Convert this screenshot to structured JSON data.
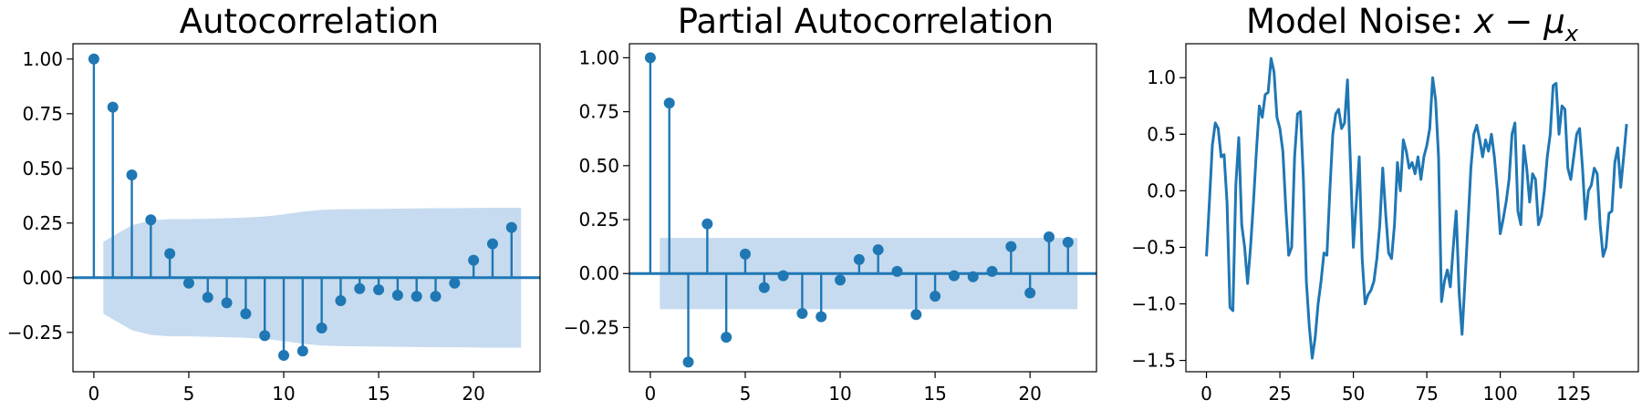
{
  "colors": {
    "series": "#1f77b4",
    "band": "#c6dbef"
  },
  "chart_data": [
    {
      "type": "stem",
      "title": "Autocorrelation",
      "xlim": [
        -1.1,
        23.5
      ],
      "ylim": [
        -0.43,
        1.07
      ],
      "xticks": [
        0,
        5,
        10,
        15,
        20
      ],
      "yticks": [
        -0.25,
        0.0,
        0.25,
        0.5,
        0.75,
        1.0
      ],
      "ytick_labels": [
        "−0.25",
        "0.00",
        "0.25",
        "0.50",
        "0.75",
        "1.00"
      ],
      "lags": [
        0,
        1,
        2,
        3,
        4,
        5,
        6,
        7,
        8,
        9,
        10,
        11,
        12,
        13,
        14,
        15,
        16,
        17,
        18,
        19,
        20,
        21,
        22
      ],
      "values": [
        1.0,
        0.78,
        0.47,
        0.265,
        0.11,
        -0.025,
        -0.09,
        -0.115,
        -0.165,
        -0.265,
        -0.355,
        -0.335,
        -0.23,
        -0.105,
        -0.05,
        -0.055,
        -0.08,
        -0.085,
        -0.085,
        -0.025,
        0.08,
        0.155,
        0.23
      ],
      "confidence_band": {
        "lags": [
          0.5,
          1,
          2,
          3,
          4,
          5,
          6,
          7,
          8,
          9,
          10,
          11,
          12,
          13,
          14,
          15,
          16,
          17,
          18,
          19,
          20,
          21,
          22,
          22.5
        ],
        "upper": [
          0.165,
          0.19,
          0.24,
          0.262,
          0.268,
          0.268,
          0.27,
          0.272,
          0.275,
          0.28,
          0.29,
          0.302,
          0.31,
          0.313,
          0.314,
          0.315,
          0.316,
          0.317,
          0.318,
          0.318,
          0.319,
          0.32,
          0.32,
          0.32
        ],
        "lower": [
          -0.165,
          -0.19,
          -0.24,
          -0.262,
          -0.268,
          -0.268,
          -0.27,
          -0.272,
          -0.275,
          -0.28,
          -0.29,
          -0.302,
          -0.31,
          -0.313,
          -0.314,
          -0.315,
          -0.316,
          -0.317,
          -0.318,
          -0.318,
          -0.319,
          -0.32,
          -0.32,
          -0.32
        ]
      }
    },
    {
      "type": "stem",
      "title": "Partial Autocorrelation",
      "xlim": [
        -1.1,
        23.5
      ],
      "ylim": [
        -0.455,
        1.065
      ],
      "xticks": [
        0,
        5,
        10,
        15,
        20
      ],
      "yticks": [
        -0.25,
        0.0,
        0.25,
        0.5,
        0.75,
        1.0
      ],
      "ytick_labels": [
        "−0.25",
        "0.00",
        "0.25",
        "0.50",
        "0.75",
        "1.00"
      ],
      "lags": [
        0,
        1,
        2,
        3,
        4,
        5,
        6,
        7,
        8,
        9,
        10,
        11,
        12,
        13,
        14,
        15,
        16,
        17,
        18,
        19,
        20,
        21,
        22
      ],
      "values": [
        1.0,
        0.79,
        -0.41,
        0.23,
        -0.295,
        0.09,
        -0.065,
        -0.01,
        -0.185,
        -0.2,
        -0.03,
        0.065,
        0.11,
        0.01,
        -0.19,
        -0.105,
        -0.01,
        -0.015,
        0.01,
        0.125,
        -0.09,
        0.17,
        0.145
      ],
      "confidence_band": {
        "lags": [
          0.5,
          22.5
        ],
        "upper": [
          0.165,
          0.165
        ],
        "lower": [
          -0.165,
          -0.165
        ]
      }
    },
    {
      "type": "line",
      "title": "Model Noise: ",
      "title_math": {
        "x": "x",
        "minus": " − ",
        "mu": "μ",
        "sub": "x"
      },
      "xlim": [
        -7,
        147
      ],
      "ylim": [
        -1.6,
        1.3
      ],
      "xticks": [
        0,
        25,
        50,
        75,
        100,
        125
      ],
      "yticks": [
        -1.5,
        -1.0,
        -0.5,
        0.0,
        0.5,
        1.0
      ],
      "ytick_labels": [
        "−1.5",
        "−1.0",
        "−0.5",
        "0.0",
        "0.5",
        "1.0"
      ],
      "values": [
        -0.58,
        -0.1,
        0.4,
        0.6,
        0.55,
        0.3,
        0.32,
        -0.1,
        -1.03,
        -1.06,
        0.05,
        0.47,
        -0.3,
        -0.5,
        -0.82,
        -0.5,
        -0.1,
        0.35,
        0.75,
        0.65,
        0.85,
        0.87,
        1.17,
        1.05,
        0.65,
        0.55,
        0.35,
        -0.15,
        -0.57,
        -0.5,
        0.3,
        0.68,
        0.7,
        0.1,
        -0.8,
        -1.2,
        -1.48,
        -1.3,
        -1.0,
        -0.8,
        -0.55,
        -0.57,
        0.0,
        0.5,
        0.68,
        0.72,
        0.55,
        0.6,
        0.98,
        0.25,
        -0.5,
        -0.1,
        0.3,
        -0.6,
        -1.0,
        -0.92,
        -0.88,
        -0.8,
        -0.6,
        -0.3,
        0.2,
        -0.2,
        -0.55,
        -0.6,
        -0.3,
        0.25,
        0.0,
        0.45,
        0.35,
        0.2,
        0.25,
        0.15,
        0.3,
        0.1,
        0.3,
        0.4,
        0.55,
        1.0,
        0.8,
        0.3,
        -0.98,
        -0.8,
        -0.7,
        -0.85,
        -0.5,
        -0.18,
        -0.9,
        -1.27,
        -0.8,
        -0.3,
        0.2,
        0.5,
        0.58,
        0.45,
        0.3,
        0.45,
        0.35,
        0.5,
        0.3,
        0.0,
        -0.38,
        -0.25,
        -0.1,
        0.1,
        0.5,
        0.6,
        -0.18,
        -0.3,
        0.4,
        0.2,
        -0.1,
        0.15,
        0.1,
        -0.3,
        -0.22,
        0.0,
        0.3,
        0.5,
        0.93,
        0.95,
        0.5,
        0.75,
        0.72,
        0.2,
        0.1,
        0.3,
        0.5,
        0.55,
        0.2,
        -0.25,
        0.0,
        0.05,
        0.2,
        0.15,
        -0.3,
        -0.58,
        -0.5,
        -0.2,
        -0.18,
        0.25,
        0.38,
        0.03,
        0.3,
        0.59
      ]
    }
  ]
}
